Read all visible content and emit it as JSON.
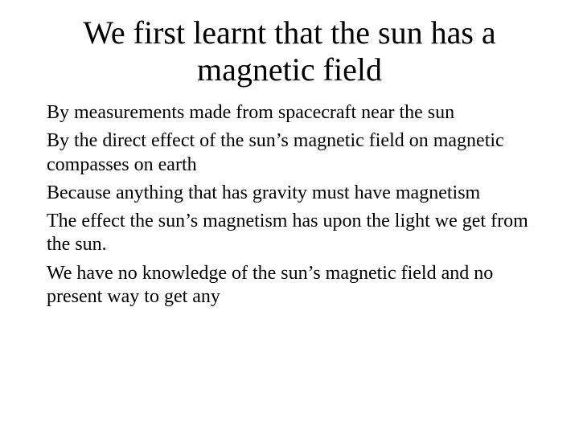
{
  "slide": {
    "title": "We first learnt that the sun has a magnetic field",
    "items": [
      "By measurements made from spacecraft near the sun",
      "By the direct effect of the sun’s magnetic field on magnetic compasses on earth",
      "Because anything that has gravity must have magnetism",
      "The effect the sun’s magnetism has upon the light we get from the sun.",
      "We have no knowledge of the sun’s magnetic field and no present way to get any"
    ],
    "title_fontsize": 40,
    "body_fontsize": 24,
    "text_color": "#000000",
    "background_color": "#ffffff",
    "font_family": "Times New Roman"
  }
}
